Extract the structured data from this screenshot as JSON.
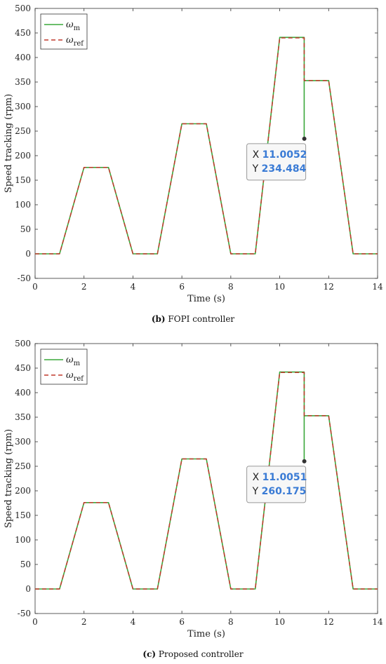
{
  "chart_data": [
    {
      "type": "line",
      "caption_label": "(b)",
      "caption_text": "FOPI controller",
      "xlabel": "Time (s)",
      "ylabel": "Speed tracking (rpm)",
      "xlim": [
        0,
        14
      ],
      "ylim": [
        -50,
        500
      ],
      "xticks": [
        0,
        2,
        4,
        6,
        8,
        10,
        12,
        14
      ],
      "yticks": [
        -50,
        0,
        50,
        100,
        150,
        200,
        250,
        300,
        350,
        400,
        450,
        500
      ],
      "grid": false,
      "legend_position": "top-left",
      "series": [
        {
          "name": "ω_m",
          "legend_symbol": "ω",
          "legend_subscript": "m",
          "color": "#3aa83a",
          "style": "solid",
          "x": [
            0,
            1,
            2,
            3,
            4,
            5,
            6,
            7,
            8,
            9,
            10,
            11,
            11,
            11,
            12,
            13,
            14
          ],
          "y": [
            0,
            0,
            176,
            176,
            0,
            0,
            265,
            265,
            0,
            0,
            441,
            441,
            234.484,
            353,
            353,
            0,
            0
          ]
        },
        {
          "name": "ω_ref",
          "legend_symbol": "ω",
          "legend_subscript": "ref",
          "color": "#c0392b",
          "style": "dashed",
          "x": [
            0,
            1,
            2,
            3,
            4,
            5,
            6,
            7,
            8,
            9,
            10,
            11,
            11,
            12,
            13,
            14
          ],
          "y": [
            0,
            0,
            176,
            176,
            0,
            0,
            265,
            265,
            0,
            0,
            440,
            440,
            353,
            353,
            0,
            0
          ]
        }
      ],
      "datatip": {
        "x_label": "X",
        "x_value": "11.0052",
        "y_label": "Y",
        "y_value": "234.484",
        "x": 11.0052,
        "y": 234.484
      }
    },
    {
      "type": "line",
      "caption_label": "(c)",
      "caption_text": "Proposed controller",
      "xlabel": "Time (s)",
      "ylabel": "Speed tracking (rpm)",
      "xlim": [
        0,
        14
      ],
      "ylim": [
        -50,
        500
      ],
      "xticks": [
        0,
        2,
        4,
        6,
        8,
        10,
        12,
        14
      ],
      "yticks": [
        -50,
        0,
        50,
        100,
        150,
        200,
        250,
        300,
        350,
        400,
        450,
        500
      ],
      "grid": false,
      "legend_position": "top-left",
      "series": [
        {
          "name": "ω_m",
          "legend_symbol": "ω",
          "legend_subscript": "m",
          "color": "#3aa83a",
          "style": "solid",
          "x": [
            0,
            1,
            2,
            3,
            4,
            5,
            6,
            7,
            8,
            9,
            10,
            11,
            11,
            11,
            12,
            13,
            14
          ],
          "y": [
            0,
            0,
            176,
            176,
            0,
            0,
            265,
            265,
            0,
            0,
            442,
            442,
            260.175,
            353,
            353,
            0,
            0
          ]
        },
        {
          "name": "ω_ref",
          "legend_symbol": "ω",
          "legend_subscript": "ref",
          "color": "#c0392b",
          "style": "dashed",
          "x": [
            0,
            1,
            2,
            3,
            4,
            5,
            6,
            7,
            8,
            9,
            10,
            11,
            11,
            12,
            13,
            14
          ],
          "y": [
            0,
            0,
            176,
            176,
            0,
            0,
            265,
            265,
            0,
            0,
            441,
            441,
            353,
            353,
            0,
            0
          ]
        }
      ],
      "datatip": {
        "x_label": "X",
        "x_value": "11.0051",
        "y_label": "Y",
        "y_value": "260.175",
        "x": 11.0051,
        "y": 260.175
      }
    }
  ]
}
